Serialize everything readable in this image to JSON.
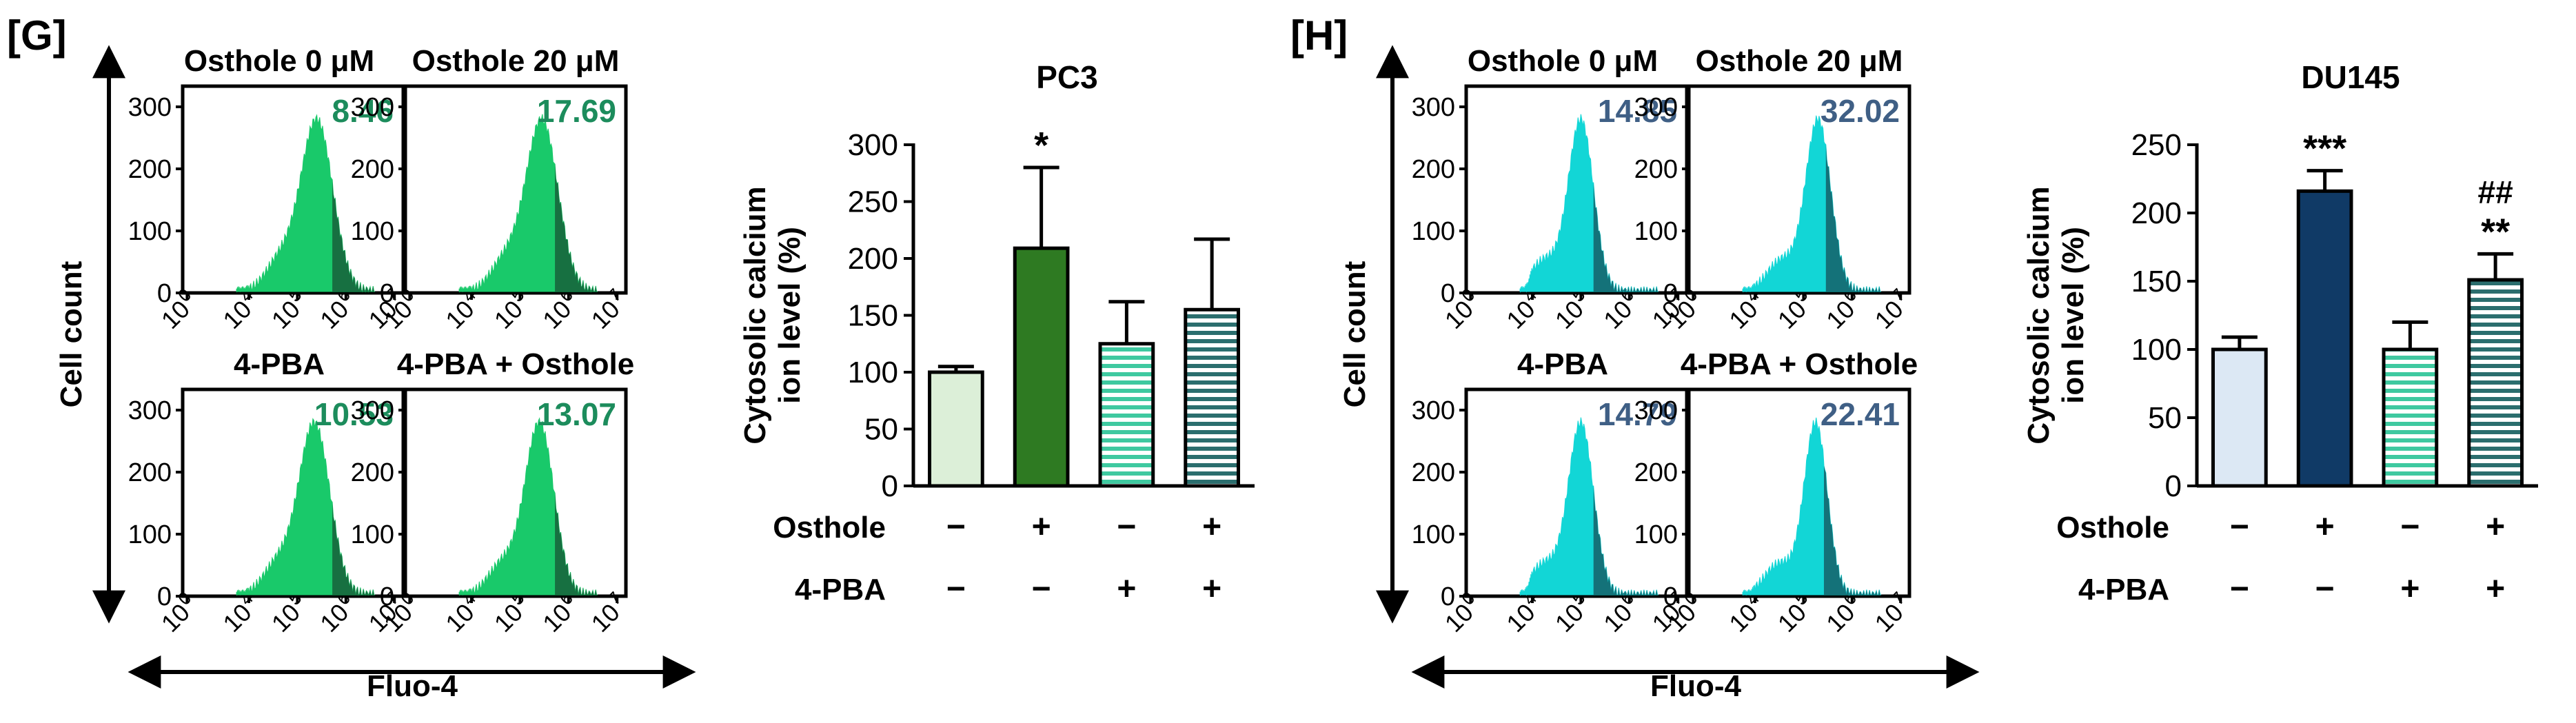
{
  "panels": [
    {
      "label": "[G]",
      "y_axis_label": "Cell count",
      "x_axis_label": "Fluo-4",
      "hist_color": "#19c96a",
      "hist_dark": "#17603a",
      "value_color": "#1c8c5c",
      "histograms": [
        {
          "title": "Osthole 0 μM",
          "value": "8.46",
          "peak_log": 5.4,
          "spread": 0.33,
          "gate_log": 5.7
        },
        {
          "title": "Osthole 20 μM",
          "value": "17.69",
          "peak_log": 5.45,
          "spread": 0.33,
          "gate_log": 5.7
        },
        {
          "title": "4-PBA",
          "value": "10.53",
          "peak_log": 5.35,
          "spread": 0.32,
          "gate_log": 5.7
        },
        {
          "title": "4-PBA + Osthole",
          "value": "13.07",
          "peak_log": 5.4,
          "spread": 0.3,
          "gate_log": 5.7
        }
      ],
      "hist_ylim": [
        0,
        300
      ],
      "hist_yticks": [
        "0",
        "100",
        "200",
        "300"
      ],
      "hist_xticks": [
        "10",
        "10",
        "10",
        "10"
      ],
      "hist_xexps": [
        "0",
        "4",
        "5",
        "6",
        "7"
      ],
      "chart_data": {
        "type": "bar",
        "title": "PC3",
        "ylabel": "Cytosolic calcium ion level (%)",
        "ylim": [
          0,
          300
        ],
        "yticks": [
          0,
          50,
          100,
          150,
          200,
          250,
          300
        ],
        "values": [
          100,
          209,
          125,
          155
        ],
        "errors": [
          5,
          71,
          37,
          62
        ],
        "significance": [
          "",
          "*",
          "",
          ""
        ],
        "significance2": [
          "",
          "",
          "",
          ""
        ],
        "fills": [
          "solid-light",
          "solid-dark",
          "hatch",
          "hatch"
        ],
        "bar_light": "#dcefd8",
        "bar_dark": "#2e7a22",
        "hatch_color": "#3fc9a0",
        "hatch_dark": "#2b6e6e",
        "treatment_rows": [
          {
            "name": "Osthole",
            "signs": [
              "−",
              "+",
              "−",
              "+"
            ]
          },
          {
            "name": "4-PBA",
            "signs": [
              "−",
              "−",
              "+",
              "+"
            ]
          }
        ]
      }
    },
    {
      "label": "[H]",
      "y_axis_label": "Cell count",
      "x_axis_label": "Fluo-4",
      "hist_color": "#12d6d6",
      "hist_dark": "#156068",
      "value_color": "#3f5f85",
      "histograms": [
        {
          "title": "Osthole 0 μM",
          "value": "14.85",
          "peak_log": 5.0,
          "spread": 0.26,
          "gate_log": 5.25
        },
        {
          "title": "Osthole 20 μM",
          "value": "32.02",
          "peak_log": 5.3,
          "spread": 0.26,
          "gate_log": 5.45
        },
        {
          "title": "4-PBA",
          "value": "14.79",
          "peak_log": 5.0,
          "spread": 0.26,
          "gate_log": 5.25
        },
        {
          "title": "4-PBA + Osthole",
          "value": "22.41",
          "peak_log": 5.25,
          "spread": 0.24,
          "gate_log": 5.4
        }
      ],
      "hist_ylim": [
        0,
        300
      ],
      "hist_yticks": [
        "0",
        "100",
        "200",
        "300"
      ],
      "chart_data": {
        "type": "bar",
        "title": "DU145",
        "ylabel": "Cytosolic calcium ion level (%)",
        "ylim": [
          0,
          250
        ],
        "yticks": [
          0,
          50,
          100,
          150,
          200,
          250
        ],
        "values": [
          100,
          216,
          100,
          151
        ],
        "errors": [
          9,
          15,
          20,
          19
        ],
        "significance": [
          "",
          "***",
          "",
          "**"
        ],
        "significance2": [
          "",
          "",
          "",
          "##"
        ],
        "fills": [
          "solid-light",
          "solid-dark",
          "hatch",
          "hatch"
        ],
        "bar_light": "#dce8f4",
        "bar_dark": "#103a66",
        "hatch_color": "#3fc9a0",
        "hatch_dark": "#2b6e6e",
        "treatment_rows": [
          {
            "name": "Osthole",
            "signs": [
              "−",
              "+",
              "−",
              "+"
            ]
          },
          {
            "name": "4-PBA",
            "signs": [
              "−",
              "−",
              "+",
              "+"
            ]
          }
        ]
      }
    }
  ]
}
